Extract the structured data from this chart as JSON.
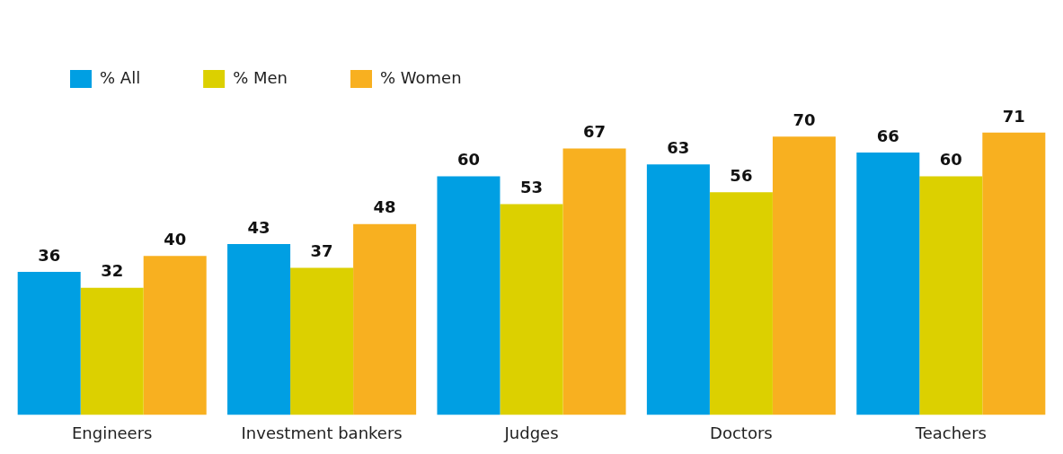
{
  "chart_data": {
    "type": "bar",
    "categories": [
      "Engineers",
      "Investment bankers",
      "Judges",
      "Doctors",
      "Teachers"
    ],
    "series": [
      {
        "name": "% All",
        "color": "#009fe3",
        "values": [
          36,
          43,
          60,
          63,
          66
        ]
      },
      {
        "name": "% Men",
        "color": "#dcd000",
        "values": [
          32,
          37,
          53,
          56,
          60
        ]
      },
      {
        "name": "% Women",
        "color": "#f8b020",
        "values": [
          40,
          48,
          67,
          70,
          71
        ]
      }
    ],
    "tick_labels": "x",
    "data_labels": true,
    "legend": "top left",
    "grid": false
  }
}
